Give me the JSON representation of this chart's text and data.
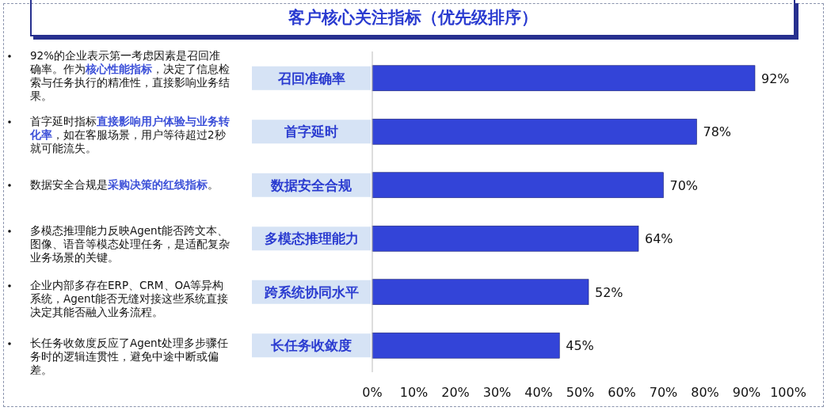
{
  "chart_data": {
    "type": "bar",
    "orientation": "horizontal",
    "title": "客户核心关注指标（优先级排序）",
    "categories": [
      "召回准确率",
      "首字延时",
      "数据安全合规",
      "多模态推理能力",
      "跨系统协同水平",
      "长任务收敛度"
    ],
    "values": [
      92,
      78,
      70,
      64,
      52,
      45
    ],
    "value_labels": [
      "92%",
      "78%",
      "70%",
      "64%",
      "52%",
      "45%"
    ],
    "color": "#3344d8",
    "xlim": [
      0,
      100
    ],
    "xticks": [
      {
        "value": 0,
        "label": "0%"
      },
      {
        "value": 10,
        "label": "10%"
      },
      {
        "value": 20,
        "label": "20%"
      },
      {
        "value": 30,
        "label": "30%"
      },
      {
        "value": 40,
        "label": "40%"
      },
      {
        "value": 50,
        "label": "50%"
      },
      {
        "value": 60,
        "label": "60%"
      },
      {
        "value": 70,
        "label": "70%"
      },
      {
        "value": 80,
        "label": "80%"
      },
      {
        "value": 90,
        "label": "90%"
      },
      {
        "value": 100,
        "label": "100%"
      }
    ],
    "annotations": [
      "92%的企业表示第一考虑因素是召回准确率。作为**核心性能指标**，决定了信息检索与任务执行的精准性，直接影响业务结果。",
      "首字延时指标**直接影响用户体验与业务转化率**，如在客服场景，用户等待超过2秒就可能流失。",
      "数据安全合规是**采购决策的红线指标**。",
      "多模态推理能力反映Agent能否跨文本、图像、语音等模态处理任务，是适配复杂业务场景的关键。",
      "企业内部多存在ERP、CRM、OA等异构系统，Agent能否无缝对接这些系统直接决定其能否融入业务流程。",
      "长任务收敛度反应了Agent处理多步骤任务时的逻辑连贯性，避免中途中断或偏差。"
    ]
  }
}
